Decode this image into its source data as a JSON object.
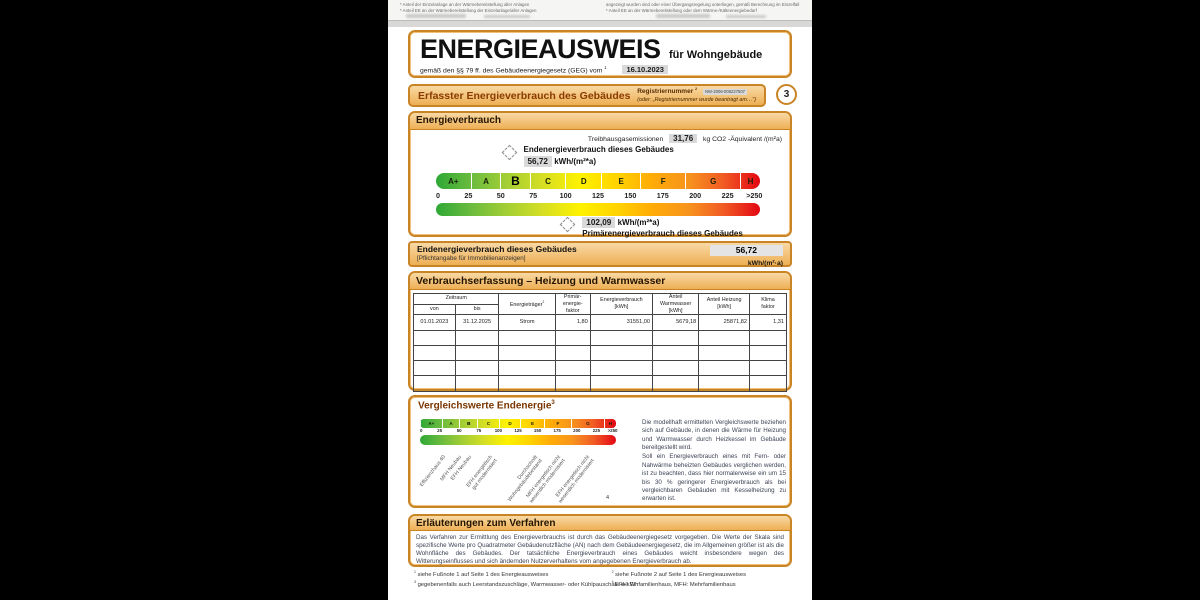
{
  "colors": {
    "border_orange": "#c98425",
    "header_fill_top": "#f8d9a4",
    "header_fill_bottom": "#eeaf55",
    "value_box_gray": "#d9d9d9",
    "title_brown": "#8a3c00",
    "scale_gradient": [
      "#2ea836",
      "#6cbc3e",
      "#a5cf34",
      "#d7df23",
      "#fff200",
      "#ffd400",
      "#ffab07",
      "#f7941d",
      "#f15a24",
      "#e30613"
    ]
  },
  "prev_page_fragment": {
    "left_line1": "* Anteil der Einzelanlage an der Wärmebereitstellung aller Anlagen",
    "left_line2": "* Anteil EE an der Wärmebereitstellung der Einzelanlage/aller Anlagen",
    "right_line1": "angezeigt wurden sind oder einer Übergangsregelung unterliegen, gemäß Berechnung im Einzelfall",
    "right_line2": "* Anteil EE an der Wärmebereitstellung oder dem Wärme-/Kälteenergiebedarf"
  },
  "header": {
    "title": "ENERGIEAUSWEIS",
    "subtitle": "für Wohngebäude",
    "law_text": "gemäß den §§ 79 ff. des Gebäudeenergiegesetz (GEG) vom",
    "law_footnote": "1",
    "date": "16.10.2023"
  },
  "section_bar": {
    "title": "Erfasster Energieverbrauch des Gebäudes",
    "reg_label": "Registriernummer",
    "reg_footnote": "2",
    "reg_number": "NW-2006-006227507",
    "reg_alt": "(oder: „Registriernummer wurde beantragt am…\")",
    "page_number": "3"
  },
  "consumption": {
    "box_title": "Energieverbrauch",
    "ghg_label": "Treibhausgasemissionen",
    "ghg_value": "31,76",
    "ghg_unit": "kg CO2 -Äquivalent /(m²a)",
    "end_energy_label": "Endenergieverbrauch dieses Gebäudes",
    "end_energy_value": "56,72",
    "end_energy_unit": "kWh/(m²*a)",
    "primary_value": "102,09",
    "primary_unit": "kWh/(m²*a)",
    "primary_label": "Primärenergieverbrauch dieses Gebäudes"
  },
  "scale": {
    "letters": [
      "A+",
      "A",
      "B",
      "C",
      "D",
      "E",
      "F",
      "G",
      "H"
    ],
    "weights": [
      11,
      9,
      9,
      11,
      11,
      12,
      14,
      17,
      6
    ],
    "ticks": [
      "0",
      "25",
      "50",
      "75",
      "100",
      "125",
      "150",
      "175",
      "200",
      "225",
      ">250"
    ],
    "rating": "B",
    "max": 250,
    "end_energy_pos": 56.72,
    "primary_pos": 102.09
  },
  "end_energy_row": {
    "label": "Endenergieverbrauch dieses Gebäudes",
    "sublabel": "[Pflichtangabe für Immobilienanzeigen]",
    "value": "56,72",
    "unit": "kWh/(m²·a)"
  },
  "table_section": {
    "title": "Verbrauchserfassung – Heizung und Warmwasser",
    "headers": {
      "zeitraum": "Zeitraum",
      "von": "von",
      "bis": "bis",
      "energietraeger": "Energieträger",
      "energietraeger_footnote": "2",
      "primaerfaktor": "Primär-\nenergie-\nfaktor",
      "energieverbrauch": "Energieverbrauch\n[kWh]",
      "anteil_warmwasser": "Anteil\nWarmwasser\n[kWh]",
      "anteil_heizung": "Anteil Heizung\n[kWh]",
      "klimafaktor": "Klima\nfaktor"
    },
    "col_widths_pct": [
      11.2,
      11.7,
      15.1,
      9.4,
      16.7,
      12.4,
      13.6,
      9.9
    ],
    "rows": [
      [
        "01.01.2023",
        "31.12.2025",
        "Strom",
        "1,80",
        "31551,00",
        "5679,18",
        "25871,82",
        "1,31"
      ]
    ],
    "empty_row_count": 4
  },
  "comparison": {
    "title": "Vergleichswerte Endenergie",
    "title_footnote": "3",
    "labels": [
      {
        "text": "Effizienzhaus 40",
        "anchor_pct": 11
      },
      {
        "text": "MFH Neubau",
        "anchor_pct": 19
      },
      {
        "text": "EFH Neubau",
        "anchor_pct": 24
      },
      {
        "text": "EFH energetisch\ngut modernisiert",
        "anchor_pct": 34
      },
      {
        "text": "Durchschnitt\nWohngebäudebestand",
        "anchor_pct": 56
      },
      {
        "text": "MFH energetisch nicht\nwesentlich modernisiert",
        "anchor_pct": 67
      },
      {
        "text": "EFH energetisch nicht\nwesentlich modernisiert",
        "anchor_pct": 81
      }
    ],
    "labels_footnote": "4",
    "text1": "Die modellhaft ermittelten Vergleichswerte beziehen sich auf Gebäude, in denen die Wärme für Heizung und Warmwasser durch Heizkessel im Gebäude bereitgestellt wird.",
    "text2": "Soll ein Energieverbrauch eines mit Fern- oder Nahwärme beheizten Gebäudes verglichen werden, ist zu beachten, dass hier normalerweise ein um 15 bis 30 % geringerer Energieverbrauch als bei vergleichbaren Gebäuden mit Kesselheizung zu erwarten ist."
  },
  "explanations": {
    "title": "Erläuterungen zum Verfahren",
    "text": "Das Verfahren zur Ermittlung des Energieverbrauchs ist durch das Gebäudeenergiegesetz vorgegeben. Die Werte der Skala sind spezifische Werte pro Quadratmeter Gebäudenutzfläche (AN) nach dem Gebäudeenergiegesetz, die im Allgemeinen größer ist als die Wohnfläche des Gebäudes. Der tatsächliche Energieverbrauch eines Gebäudes weicht insbesondere wegen des Witterungseinflusses und sich ändernden Nutzerverhaltens vom angegebenen Energieverbrauch ab."
  },
  "footnotes": [
    {
      "marker": "1",
      "text": "siehe Fußnote 1 auf Seite 1 des Energieausweises"
    },
    {
      "marker": "2",
      "text": "siehe Fußnote 2 auf Seite 1 des Energieausweises"
    },
    {
      "marker": "3",
      "text": "gegebenenfalls auch Leerstandszuschläge, Warmwasser- oder Kühlpauschale in kWh"
    },
    {
      "marker": "4",
      "text": "EFH: Einfamilienhaus, MFH: Mehrfamilienhaus"
    }
  ]
}
